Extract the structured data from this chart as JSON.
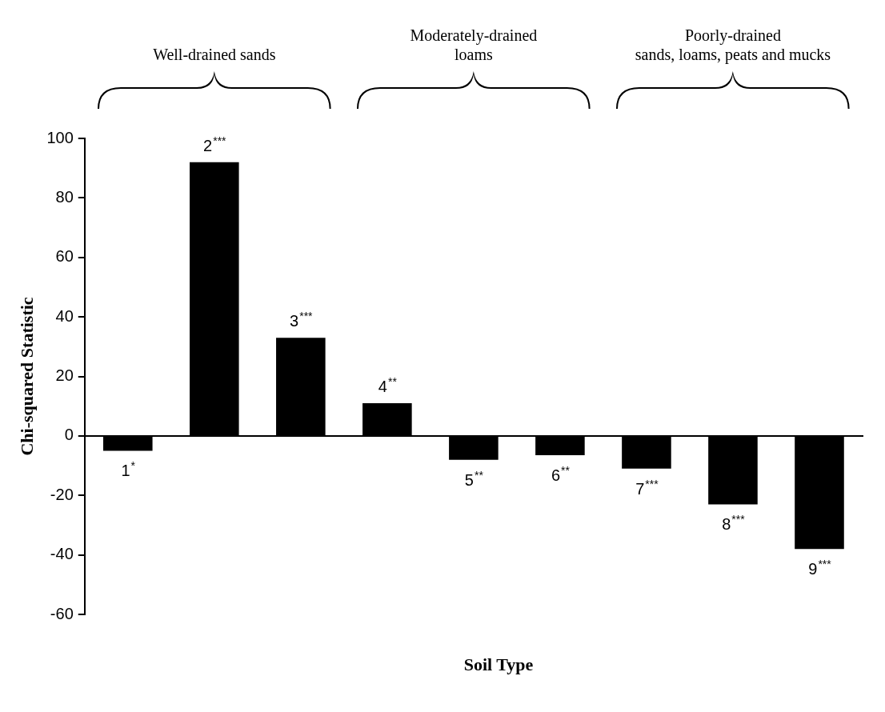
{
  "chart_data": {
    "type": "bar",
    "xlabel": "Soil Type",
    "ylabel": "Chi-squared Statistic",
    "categories": [
      "1$^{*}$",
      "2$^{***}$",
      "3$^{***}$",
      "4$^{**}$",
      "5$^{**}$",
      "6$^{**}$",
      "7$^{***}$",
      "8$^{***}$",
      "9$^{***}$"
    ],
    "values": [
      -5,
      92,
      33,
      11,
      -8,
      -6.5,
      -11,
      -23,
      -38
    ],
    "color": "#000000",
    "ylim": [
      -60,
      100
    ],
    "yticks": [
      -60,
      -40,
      -20,
      0,
      20,
      40,
      60,
      80,
      100
    ],
    "tick_labels": "y",
    "grid": false,
    "legend": false,
    "annotations": [
      "Well-drained sands",
      "Moderately-drained\nloams",
      "Poorly-drained\nsands, loams, peats and mucks"
    ]
  }
}
